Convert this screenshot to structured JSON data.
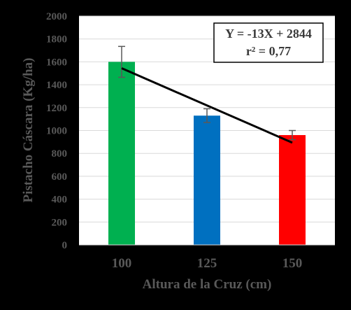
{
  "chart_data": {
    "type": "bar",
    "categories": [
      "100",
      "125",
      "150"
    ],
    "values": [
      1600,
      1130,
      960
    ],
    "error": [
      135,
      60,
      40
    ],
    "bar_colors": [
      "#00b050",
      "#0070c0",
      "#ff0000"
    ],
    "xlabel": "Altura de la Cruz (cm)",
    "ylabel": "Pistacho Cáscara (Kg/ha)",
    "ylim": [
      0,
      2000
    ],
    "yticks": [
      "0",
      "200",
      "400",
      "600",
      "800",
      "1000",
      "1200",
      "1400",
      "1600",
      "1800",
      "2000"
    ],
    "grid": true,
    "trendline": {
      "slope": -13,
      "intercept": 2844,
      "x_from": 100,
      "x_to": 150,
      "color": "#000000"
    },
    "annotation": {
      "line1": "Y = -13X + 2844",
      "line2": "r² = 0,77"
    }
  }
}
